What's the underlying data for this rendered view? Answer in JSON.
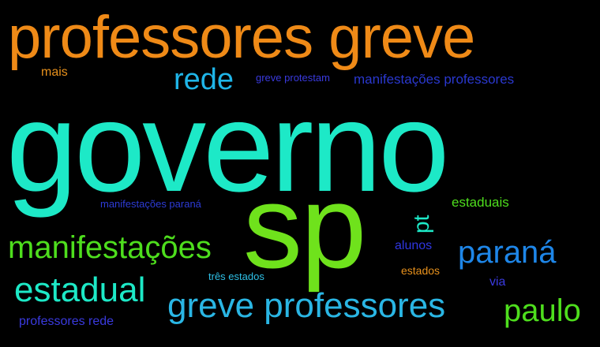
{
  "words": {
    "governo": {
      "text": "governo",
      "color": "#1de9c7"
    },
    "professores_greve": {
      "text": "professores greve",
      "color": "#ef8a17"
    },
    "sp": {
      "text": "sp",
      "color": "#6fe21c"
    },
    "rede": {
      "text": "rede",
      "color": "#1fb5e8"
    },
    "mais": {
      "text": "mais",
      "color": "#e8911c"
    },
    "greve_protestam": {
      "text": "greve protestam",
      "color": "#3a3adf"
    },
    "manifestacoes_professores": {
      "text": "manifestações professores",
      "color": "#2a38cf"
    },
    "manifestacoes_parana": {
      "text": "manifestações paraná",
      "color": "#2d3bd6"
    },
    "estaduais": {
      "text": "estaduais",
      "color": "#4ede1d"
    },
    "manifestacoes": {
      "text": "manifestações",
      "color": "#4ede1d"
    },
    "pt": {
      "text": "pt",
      "color": "#1de9c7"
    },
    "alunos": {
      "text": "alunos",
      "color": "#2f36e0"
    },
    "parana": {
      "text": "paraná",
      "color": "#1e86e8"
    },
    "estadual": {
      "text": "estadual",
      "color": "#1de9c7"
    },
    "tres_estados": {
      "text": "três estados",
      "color": "#2ec0e6"
    },
    "estados": {
      "text": "estados",
      "color": "#e8911c"
    },
    "via": {
      "text": "via",
      "color": "#3a3adf"
    },
    "greve_professores": {
      "text": "greve professores",
      "color": "#2ab6e4"
    },
    "paulo": {
      "text": "paulo",
      "color": "#4ede1d"
    },
    "professores_rede": {
      "text": "professores rede",
      "color": "#3a3adf"
    }
  }
}
